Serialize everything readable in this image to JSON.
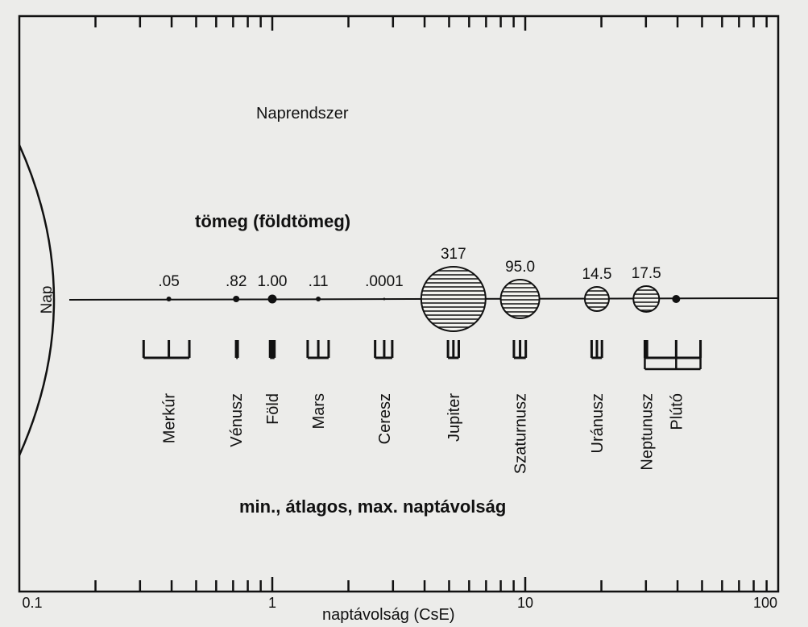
{
  "diagram": {
    "title": "Naprendszer",
    "mass_heading": "tömeg (földtömeg)",
    "distance_heading": "min., átlagos, max. naptávolság",
    "x_axis_label": "naptávolság (CsE)",
    "sun_label": "Nap"
  },
  "chart_data": {
    "type": "scatter",
    "x_scale": "log",
    "xlim": [
      0.1,
      100
    ],
    "x_ticks": [
      {
        "value": 0.1,
        "label": "0.1"
      },
      {
        "value": 1,
        "label": "1"
      },
      {
        "value": 10,
        "label": "10"
      },
      {
        "value": 100,
        "label": "100"
      }
    ],
    "planets": [
      {
        "name": "Merkúr",
        "mass_label": ".05",
        "min": 0.31,
        "avg": 0.39,
        "max": 0.47,
        "banded": false
      },
      {
        "name": "Vénusz",
        "mass_label": ".82",
        "min": 0.72,
        "avg": 0.72,
        "max": 0.73,
        "banded": false
      },
      {
        "name": "Föld",
        "mass_label": "1.00",
        "min": 0.98,
        "avg": 1.0,
        "max": 1.02,
        "banded": false
      },
      {
        "name": "Mars",
        "mass_label": ".11",
        "min": 1.38,
        "avg": 1.52,
        "max": 1.67,
        "banded": false
      },
      {
        "name": "Ceresz",
        "mass_label": ".0001",
        "min": 2.55,
        "avg": 2.77,
        "max": 2.98,
        "banded": false
      },
      {
        "name": "Jupiter",
        "mass_label": "317",
        "min": 4.95,
        "avg": 5.2,
        "max": 5.46,
        "banded": true
      },
      {
        "name": "Szaturnusz",
        "mass_label": "95.0",
        "min": 9.02,
        "avg": 9.54,
        "max": 10.05,
        "banded": true
      },
      {
        "name": "Uránusz",
        "mass_label": "14.5",
        "min": 18.3,
        "avg": 19.2,
        "max": 20.1,
        "banded": true
      },
      {
        "name": "Neptunusz",
        "mass_label": "17.5",
        "min": 29.8,
        "avg": 30.1,
        "max": 30.3,
        "banded": true
      },
      {
        "name": "Plútó",
        "mass_label": "",
        "min": 29.7,
        "avg": 39.5,
        "max": 49.3,
        "banded": false
      }
    ]
  }
}
